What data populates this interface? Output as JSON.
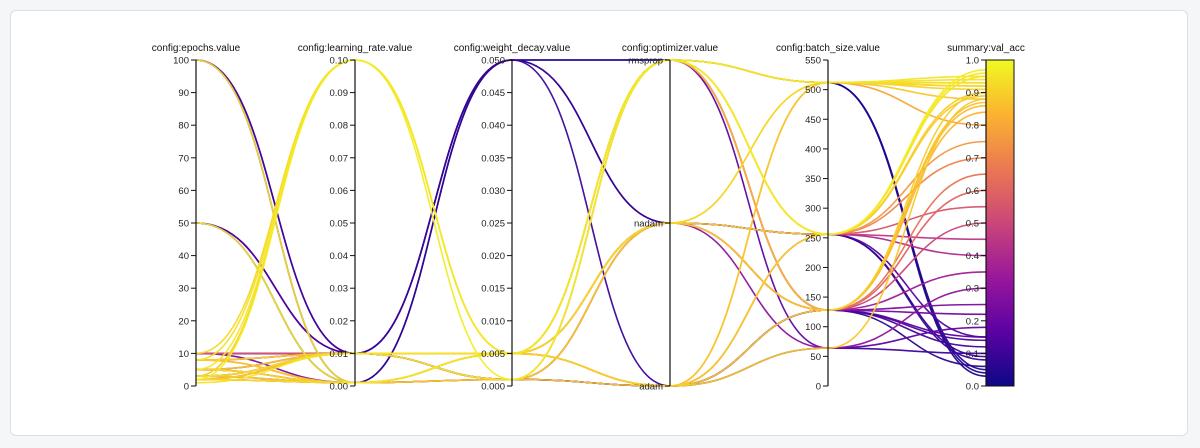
{
  "chart_data": {
    "type": "parallel-coordinates",
    "title": "",
    "color_by": "summary:val_acc",
    "colormap": [
      "#0d0887",
      "#5b02a3",
      "#9a179b",
      "#cb4678",
      "#eb7852",
      "#fbb32f",
      "#f0f921"
    ],
    "axes": [
      {
        "key": "epochs",
        "label": "config:epochs.value",
        "range": [
          0,
          100
        ],
        "ticks": [
          0,
          10,
          20,
          30,
          40,
          50,
          60,
          70,
          80,
          90,
          100
        ],
        "tick_labels": [
          "0",
          "10",
          "20",
          "30",
          "40",
          "50",
          "60",
          "70",
          "80",
          "90",
          "100"
        ]
      },
      {
        "key": "learning_rate",
        "label": "config:learning_rate.value",
        "range": [
          0,
          0.1
        ],
        "ticks": [
          0,
          0.01,
          0.02,
          0.03,
          0.04,
          0.05,
          0.06,
          0.07,
          0.08,
          0.09,
          0.1
        ],
        "tick_labels": [
          "0.00",
          "0.01",
          "0.02",
          "0.03",
          "0.04",
          "0.05",
          "0.06",
          "0.07",
          "0.08",
          "0.09",
          "0.10"
        ]
      },
      {
        "key": "weight_decay",
        "label": "config:weight_decay.value",
        "range": [
          0,
          0.05
        ],
        "ticks": [
          0,
          0.005,
          0.01,
          0.015,
          0.02,
          0.025,
          0.03,
          0.035,
          0.04,
          0.045,
          0.05
        ],
        "tick_labels": [
          "0.000",
          "0.005",
          "0.010",
          "0.015",
          "0.020",
          "0.025",
          "0.030",
          "0.035",
          "0.040",
          "0.045",
          "0.050"
        ]
      },
      {
        "key": "optimizer",
        "label": "config:optimizer.value",
        "categorical": true,
        "categories": [
          "adam",
          "nadam",
          "rmsprop"
        ]
      },
      {
        "key": "batch_size",
        "label": "config:batch_size.value",
        "range": [
          0,
          550
        ],
        "ticks": [
          0,
          50,
          100,
          150,
          200,
          250,
          300,
          350,
          400,
          450,
          500,
          550
        ],
        "tick_labels": [
          "0",
          "50",
          "100",
          "150",
          "200",
          "250",
          "300",
          "350",
          "400",
          "450",
          "500",
          "550"
        ]
      },
      {
        "key": "val_acc",
        "label": "summary:val_acc",
        "range": [
          0,
          1
        ],
        "ticks": [
          0,
          0.1,
          0.2,
          0.3,
          0.4,
          0.5,
          0.6,
          0.7,
          0.8,
          0.9,
          1.0
        ],
        "tick_labels": [
          "0.0",
          "0.1",
          "0.2",
          "0.3",
          "0.4",
          "0.5",
          "0.6",
          "0.7",
          "0.8",
          "0.9",
          "1.0"
        ]
      }
    ],
    "runs": [
      {
        "epochs": 100,
        "learning_rate": 0.01,
        "weight_decay": 0.005,
        "optimizer": "rmsprop",
        "batch_size": 512,
        "val_acc": 0.05
      },
      {
        "epochs": 100,
        "learning_rate": 0.001,
        "weight_decay": 0.05,
        "optimizer": "nadam",
        "batch_size": 256,
        "val_acc": 0.08
      },
      {
        "epochs": 100,
        "learning_rate": 0.01,
        "weight_decay": 0.001,
        "optimizer": "adam",
        "batch_size": 128,
        "val_acc": 0.12
      },
      {
        "epochs": 100,
        "learning_rate": 0.001,
        "weight_decay": 0.005,
        "optimizer": "rmsprop",
        "batch_size": 512,
        "val_acc": 0.93
      },
      {
        "epochs": 50,
        "learning_rate": 0.01,
        "weight_decay": 0.05,
        "optimizer": "adam",
        "batch_size": 64,
        "val_acc": 0.1
      },
      {
        "epochs": 50,
        "learning_rate": 0.001,
        "weight_decay": 0.05,
        "optimizer": "rmsprop",
        "batch_size": 512,
        "val_acc": 0.04
      },
      {
        "epochs": 50,
        "learning_rate": 0.01,
        "weight_decay": 0.001,
        "optimizer": "nadam",
        "batch_size": 128,
        "val_acc": 0.15
      },
      {
        "epochs": 50,
        "learning_rate": 0.001,
        "weight_decay": 0.005,
        "optimizer": "rmsprop",
        "batch_size": 256,
        "val_acc": 0.95
      },
      {
        "epochs": 10,
        "learning_rate": 0.01,
        "weight_decay": 0.05,
        "optimizer": "rmsprop",
        "batch_size": 512,
        "val_acc": 0.03
      },
      {
        "epochs": 10,
        "learning_rate": 0.01,
        "weight_decay": 0.05,
        "optimizer": "nadam",
        "batch_size": 256,
        "val_acc": 0.09
      },
      {
        "epochs": 10,
        "learning_rate": 0.01,
        "weight_decay": 0.001,
        "optimizer": "adam",
        "batch_size": 128,
        "val_acc": 0.14
      },
      {
        "epochs": 10,
        "learning_rate": 0.1,
        "weight_decay": 0.005,
        "optimizer": "rmsprop",
        "batch_size": 512,
        "val_acc": 0.92
      },
      {
        "epochs": 10,
        "learning_rate": 0.01,
        "weight_decay": 0.005,
        "optimizer": "rmsprop",
        "batch_size": 256,
        "val_acc": 0.55
      },
      {
        "epochs": 8,
        "learning_rate": 0.1,
        "weight_decay": 0.005,
        "optimizer": "rmsprop",
        "batch_size": 512,
        "val_acc": 0.94
      },
      {
        "epochs": 8,
        "learning_rate": 0.001,
        "weight_decay": 0.001,
        "optimizer": "nadam",
        "batch_size": 128,
        "val_acc": 0.86
      },
      {
        "epochs": 8,
        "learning_rate": 0.01,
        "weight_decay": 0.005,
        "optimizer": "adam",
        "batch_size": 256,
        "val_acc": 0.9
      },
      {
        "epochs": 5,
        "learning_rate": 0.1,
        "weight_decay": 0.005,
        "optimizer": "rmsprop",
        "batch_size": 256,
        "val_acc": 0.96
      },
      {
        "epochs": 5,
        "learning_rate": 0.001,
        "weight_decay": 0.005,
        "optimizer": "nadam",
        "batch_size": 512,
        "val_acc": 0.91
      },
      {
        "epochs": 5,
        "learning_rate": 0.01,
        "weight_decay": 0.001,
        "optimizer": "adam",
        "batch_size": 512,
        "val_acc": 0.88
      },
      {
        "epochs": 5,
        "learning_rate": 0.001,
        "weight_decay": 0.005,
        "optimizer": "rmsprop",
        "batch_size": 128,
        "val_acc": 0.84
      },
      {
        "epochs": 3,
        "learning_rate": 0.1,
        "weight_decay": 0.005,
        "optimizer": "nadam",
        "batch_size": 256,
        "val_acc": 0.89
      },
      {
        "epochs": 3,
        "learning_rate": 0.01,
        "weight_decay": 0.001,
        "optimizer": "rmsprop",
        "batch_size": 512,
        "val_acc": 0.93
      },
      {
        "epochs": 3,
        "learning_rate": 0.001,
        "weight_decay": 0.005,
        "optimizer": "adam",
        "batch_size": 128,
        "val_acc": 0.9
      },
      {
        "epochs": 2,
        "learning_rate": 0.1,
        "weight_decay": 0.001,
        "optimizer": "rmsprop",
        "batch_size": 256,
        "val_acc": 0.97
      },
      {
        "epochs": 2,
        "learning_rate": 0.001,
        "weight_decay": 0.005,
        "optimizer": "nadam",
        "batch_size": 512,
        "val_acc": 0.92
      },
      {
        "epochs": 2,
        "learning_rate": 0.01,
        "weight_decay": 0.005,
        "optimizer": "adam",
        "batch_size": 64,
        "val_acc": 0.88
      },
      {
        "epochs": 2,
        "learning_rate": 0.001,
        "weight_decay": 0.001,
        "optimizer": "nadam",
        "batch_size": 128,
        "val_acc": 0.87
      },
      {
        "epochs": 1,
        "learning_rate": 0.01,
        "weight_decay": 0.005,
        "optimizer": "rmsprop",
        "batch_size": 512,
        "val_acc": 0.95
      },
      {
        "epochs": 10,
        "learning_rate": 0.01,
        "weight_decay": 0.005,
        "optimizer": "nadam",
        "batch_size": 256,
        "val_acc": 0.4
      },
      {
        "epochs": 10,
        "learning_rate": 0.01,
        "weight_decay": 0.005,
        "optimizer": "adam",
        "batch_size": 128,
        "val_acc": 0.22
      },
      {
        "epochs": 8,
        "learning_rate": 0.01,
        "weight_decay": 0.005,
        "optimizer": "rmsprop",
        "batch_size": 128,
        "val_acc": 0.65
      },
      {
        "epochs": 5,
        "learning_rate": 0.001,
        "weight_decay": 0.005,
        "optimizer": "nadam",
        "batch_size": 128,
        "val_acc": 0.5
      },
      {
        "epochs": 3,
        "learning_rate": 0.01,
        "weight_decay": 0.005,
        "optimizer": "adam",
        "batch_size": 256,
        "val_acc": 0.75
      },
      {
        "epochs": 2,
        "learning_rate": 0.001,
        "weight_decay": 0.005,
        "optimizer": "rmsprop",
        "batch_size": 256,
        "val_acc": 0.7
      },
      {
        "epochs": 8,
        "learning_rate": 0.001,
        "weight_decay": 0.005,
        "optimizer": "adam",
        "batch_size": 512,
        "val_acc": 0.8
      },
      {
        "epochs": 5,
        "learning_rate": 0.01,
        "weight_decay": 0.005,
        "optimizer": "nadam",
        "batch_size": 64,
        "val_acc": 0.3
      },
      {
        "epochs": 3,
        "learning_rate": 0.001,
        "weight_decay": 0.005,
        "optimizer": "rmsprop",
        "batch_size": 128,
        "val_acc": 0.35
      },
      {
        "epochs": 2,
        "learning_rate": 0.01,
        "weight_decay": 0.005,
        "optimizer": "nadam",
        "batch_size": 128,
        "val_acc": 0.6
      },
      {
        "epochs": 10,
        "learning_rate": 0.001,
        "weight_decay": 0.001,
        "optimizer": "rmsprop",
        "batch_size": 128,
        "val_acc": 0.25
      },
      {
        "epochs": 5,
        "learning_rate": 0.001,
        "weight_decay": 0.005,
        "optimizer": "adam",
        "batch_size": 256,
        "val_acc": 0.45
      },
      {
        "epochs": 8,
        "learning_rate": 0.01,
        "weight_decay": 0.001,
        "optimizer": "nadam",
        "batch_size": 256,
        "val_acc": 0.15
      },
      {
        "epochs": 3,
        "learning_rate": 0.01,
        "weight_decay": 0.005,
        "optimizer": "rmsprop",
        "batch_size": 64,
        "val_acc": 0.18
      },
      {
        "epochs": 2,
        "learning_rate": 0.001,
        "weight_decay": 0.001,
        "optimizer": "adam",
        "batch_size": 128,
        "val_acc": 0.06
      }
    ]
  }
}
